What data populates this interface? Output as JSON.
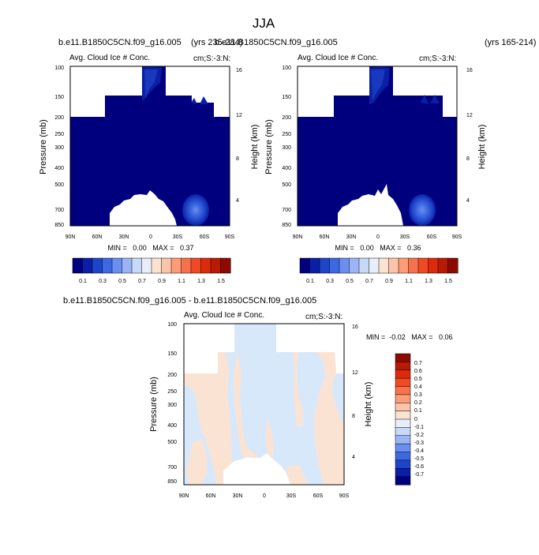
{
  "page": {
    "title": "JJA",
    "case_left": "b.e11.B1850C5CN.f09_g16.005",
    "years_left": "(yrs 235-284)",
    "case_right": "b.e11.B1850C5CN.f09_g16.005",
    "years_right": "(yrs 165-214)",
    "diff_title": "b.e11.B1850C5CN.f09_g16.005 - b.e11.B1850C5CN.f09_g16.005"
  },
  "chart_data": [
    {
      "type": "heatmap",
      "id": "left",
      "panel_title": "Avg. Cloud Ice # Conc.",
      "units": "cm;S:-3:N:",
      "ylabel": "Pressure (mb)",
      "ylabel_right": "Height (km)",
      "x_ticks": [
        "90N",
        "60N",
        "30N",
        "0",
        "30S",
        "60S",
        "90S"
      ],
      "y_ticks": [
        "100",
        "150",
        "200",
        "250",
        "300",
        "400",
        "500",
        "700",
        "850"
      ],
      "height_ticks": [
        "16",
        "12",
        "8",
        "4"
      ],
      "min_max": "MIN =   0.00   MAX =   0.37",
      "min": 0.0,
      "max": 0.37,
      "colorbar_labels": [
        "0.1",
        "0.3",
        "0.5",
        "0.7",
        "0.9",
        "1.1",
        "1.3",
        "1.5"
      ],
      "colorbar_colors": [
        "#00007f",
        "#0a1fa5",
        "#1e44c8",
        "#3d68e0",
        "#6b8ff0",
        "#9ab4f5",
        "#c7d8f8",
        "#e8eef9",
        "#fbe3d4",
        "#fcc4a8",
        "#fb9c76",
        "#f7714a",
        "#ef4a23",
        "#dc2a0c",
        "#b81a04",
        "#8c0a00"
      ]
    },
    {
      "type": "heatmap",
      "id": "right",
      "panel_title": "Avg. Cloud Ice # Conc.",
      "units": "cm;S:-3:N:",
      "ylabel": "Pressure (mb)",
      "ylabel_right": "Height (km)",
      "x_ticks": [
        "90N",
        "60N",
        "30N",
        "0",
        "30S",
        "60S",
        "90S"
      ],
      "y_ticks": [
        "100",
        "150",
        "200",
        "250",
        "300",
        "400",
        "500",
        "700",
        "850"
      ],
      "height_ticks": [
        "16",
        "12",
        "8",
        "4"
      ],
      "min_max": "MIN =   0.00   MAX =   0.36",
      "min": 0.0,
      "max": 0.36,
      "colorbar_labels": [
        "0.1",
        "0.3",
        "0.5",
        "0.7",
        "0.9",
        "1.1",
        "1.3",
        "1.5"
      ],
      "colorbar_colors": [
        "#00007f",
        "#0a1fa5",
        "#1e44c8",
        "#3d68e0",
        "#6b8ff0",
        "#9ab4f5",
        "#c7d8f8",
        "#e8eef9",
        "#fbe3d4",
        "#fcc4a8",
        "#fb9c76",
        "#f7714a",
        "#ef4a23",
        "#dc2a0c",
        "#b81a04",
        "#8c0a00"
      ]
    },
    {
      "type": "heatmap",
      "id": "diff",
      "panel_title": "Avg. Cloud Ice # Conc.",
      "units": "cm;S:-3:N:",
      "ylabel": "Pressure (mb)",
      "ylabel_right": "Height (km)",
      "x_ticks": [
        "90N",
        "60N",
        "30N",
        "0",
        "30S",
        "60S",
        "90S"
      ],
      "y_ticks": [
        "100",
        "150",
        "200",
        "250",
        "300",
        "400",
        "500",
        "700",
        "850"
      ],
      "height_ticks": [
        "16",
        "12",
        "8",
        "4"
      ],
      "min_max": "MIN =  -0.02   MAX =   0.06",
      "min": -0.02,
      "max": 0.06,
      "colorbar_labels": [
        "0.7",
        "0.6",
        "0.5",
        "0.4",
        "0.3",
        "0.2",
        "0.1",
        "0",
        "-0.1",
        "-0.2",
        "-0.3",
        "-0.4",
        "-0.5",
        "-0.6",
        "-0.7"
      ],
      "colorbar_colors": [
        "#8c0a00",
        "#b81a04",
        "#dc2a0c",
        "#ef4a23",
        "#f7714a",
        "#fb9c76",
        "#fcc4a8",
        "#fbe3d4",
        "#e8eef9",
        "#c7d8f8",
        "#9ab4f5",
        "#6b8ff0",
        "#3d68e0",
        "#1e44c8",
        "#0a1fa5",
        "#00007f"
      ]
    }
  ]
}
